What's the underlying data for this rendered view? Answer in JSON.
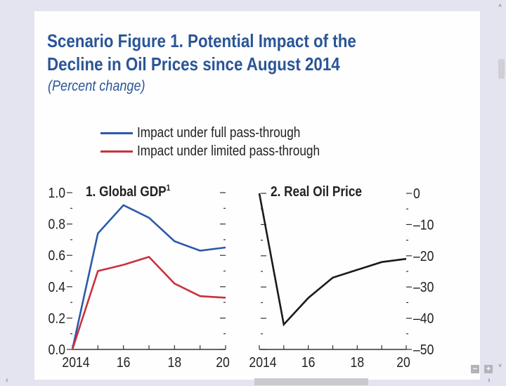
{
  "figure": {
    "title_line1": "Scenario Figure 1.  Potential Impact of the",
    "title_line2": "Decline in Oil Prices since August 2014",
    "subtitle": "(Percent change)",
    "legend": [
      {
        "label": "Impact under full pass-through",
        "color": "#2c5aa8"
      },
      {
        "label": "Impact under limited pass-through",
        "color": "#c8323e"
      }
    ]
  },
  "viewer": {
    "zoom_out_label": "−",
    "zoom_in_label": "+",
    "scroll_up_icon": "˄",
    "scroll_down_icon": "˅",
    "scroll_left_icon": "‹",
    "scroll_right_icon": "›"
  },
  "chart_data": [
    {
      "type": "line",
      "title": "1. Global GDP",
      "title_superscript": "1",
      "x": [
        2014,
        2015,
        2016,
        2017,
        2018,
        2019,
        2020
      ],
      "xtick_labels": [
        "2014",
        "16",
        "18",
        "20"
      ],
      "xtick_values": [
        2014,
        2016,
        2018,
        2020
      ],
      "xlim": [
        2014,
        2020
      ],
      "ylim": [
        0.0,
        1.0
      ],
      "ytick_labels": [
        "0.0",
        "0.2",
        "0.4",
        "0.6",
        "0.8",
        "1.0"
      ],
      "ytick_values": [
        0.0,
        0.2,
        0.4,
        0.6,
        0.8,
        1.0
      ],
      "yaxis_side": "left",
      "grid": false,
      "series": [
        {
          "name": "Impact under full pass-through",
          "color": "#2c5aa8",
          "values": [
            0.0,
            0.74,
            0.92,
            0.84,
            0.69,
            0.63,
            0.65
          ]
        },
        {
          "name": "Impact under limited pass-through",
          "color": "#c8323e",
          "values": [
            0.0,
            0.5,
            0.54,
            0.59,
            0.42,
            0.34,
            0.33
          ]
        }
      ]
    },
    {
      "type": "line",
      "title": "2. Real Oil Price",
      "x": [
        2014,
        2015,
        2016,
        2017,
        2018,
        2019,
        2020
      ],
      "xtick_labels": [
        "2014",
        "16",
        "18",
        "20"
      ],
      "xtick_values": [
        2014,
        2016,
        2018,
        2020
      ],
      "xlim": [
        2014,
        2020
      ],
      "ylim": [
        -50,
        0
      ],
      "ytick_labels": [
        "0",
        "–10",
        "–20",
        "–30",
        "–40",
        "–50"
      ],
      "ytick_values": [
        0,
        -10,
        -20,
        -30,
        -40,
        -50
      ],
      "yaxis_side": "right",
      "grid": false,
      "series": [
        {
          "name": "Real Oil Price",
          "color": "#1a1a1a",
          "values": [
            0,
            -42,
            -33.5,
            -27,
            -24.5,
            -22,
            -21
          ]
        }
      ]
    }
  ]
}
